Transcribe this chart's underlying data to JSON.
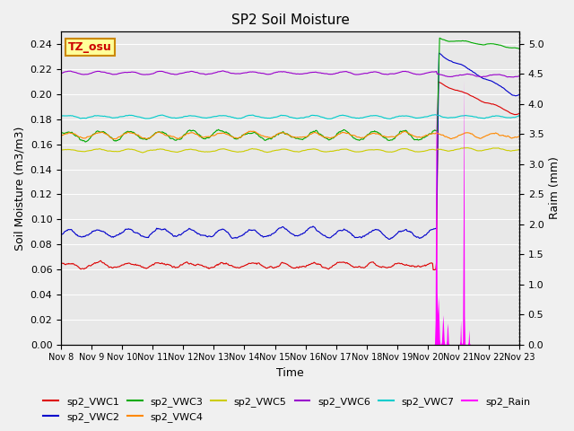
{
  "title": "SP2 Soil Moisture",
  "xlabel": "Time",
  "ylabel_left": "Soil Moisture (m3/m3)",
  "ylabel_right": "Raim (mm)",
  "ylim_left": [
    0.0,
    0.25
  ],
  "ylim_right": [
    0.0,
    5.2
  ],
  "yticks_left": [
    0.0,
    0.02,
    0.04,
    0.06,
    0.08,
    0.1,
    0.12,
    0.14,
    0.16,
    0.18,
    0.2,
    0.22,
    0.24
  ],
  "yticks_right": [
    0.0,
    0.5,
    1.0,
    1.5,
    2.0,
    2.5,
    3.0,
    3.5,
    4.0,
    4.5,
    5.0
  ],
  "xtick_labels": [
    "Nov 8",
    "Nov 9",
    "Nov 10",
    "Nov 11",
    "Nov 12",
    "Nov 13",
    "Nov 14",
    "Nov 15",
    "Nov 16",
    "Nov 17",
    "Nov 18",
    "Nov 19",
    "Nov 20",
    "Nov 21",
    "Nov 22",
    "Nov 23"
  ],
  "num_days": 15,
  "watermark_text": "TZ_osu",
  "watermark_color": "#cc0000",
  "watermark_bg": "#ffff99",
  "watermark_border": "#cc8800",
  "background_color": "#e8e8e8",
  "fig_bg_color": "#f0f0f0",
  "series_colors": {
    "sp2_VWC1": "#dd0000",
    "sp2_VWC2": "#0000cc",
    "sp2_VWC3": "#00aa00",
    "sp2_VWC4": "#ff8800",
    "sp2_VWC5": "#cccc00",
    "sp2_VWC6": "#9900cc",
    "sp2_VWC7": "#00cccc",
    "sp2_Rain": "#ff00ff"
  },
  "vwc1_base": 0.063,
  "vwc2_base": 0.089,
  "vwc3_base": 0.167,
  "vwc4_base": 0.167,
  "vwc5_base": 0.155,
  "vwc6_base": 0.217,
  "vwc7_base": 0.182,
  "title_fontsize": 11,
  "label_fontsize": 9,
  "tick_fontsize": 8,
  "legend_fontsize": 8
}
